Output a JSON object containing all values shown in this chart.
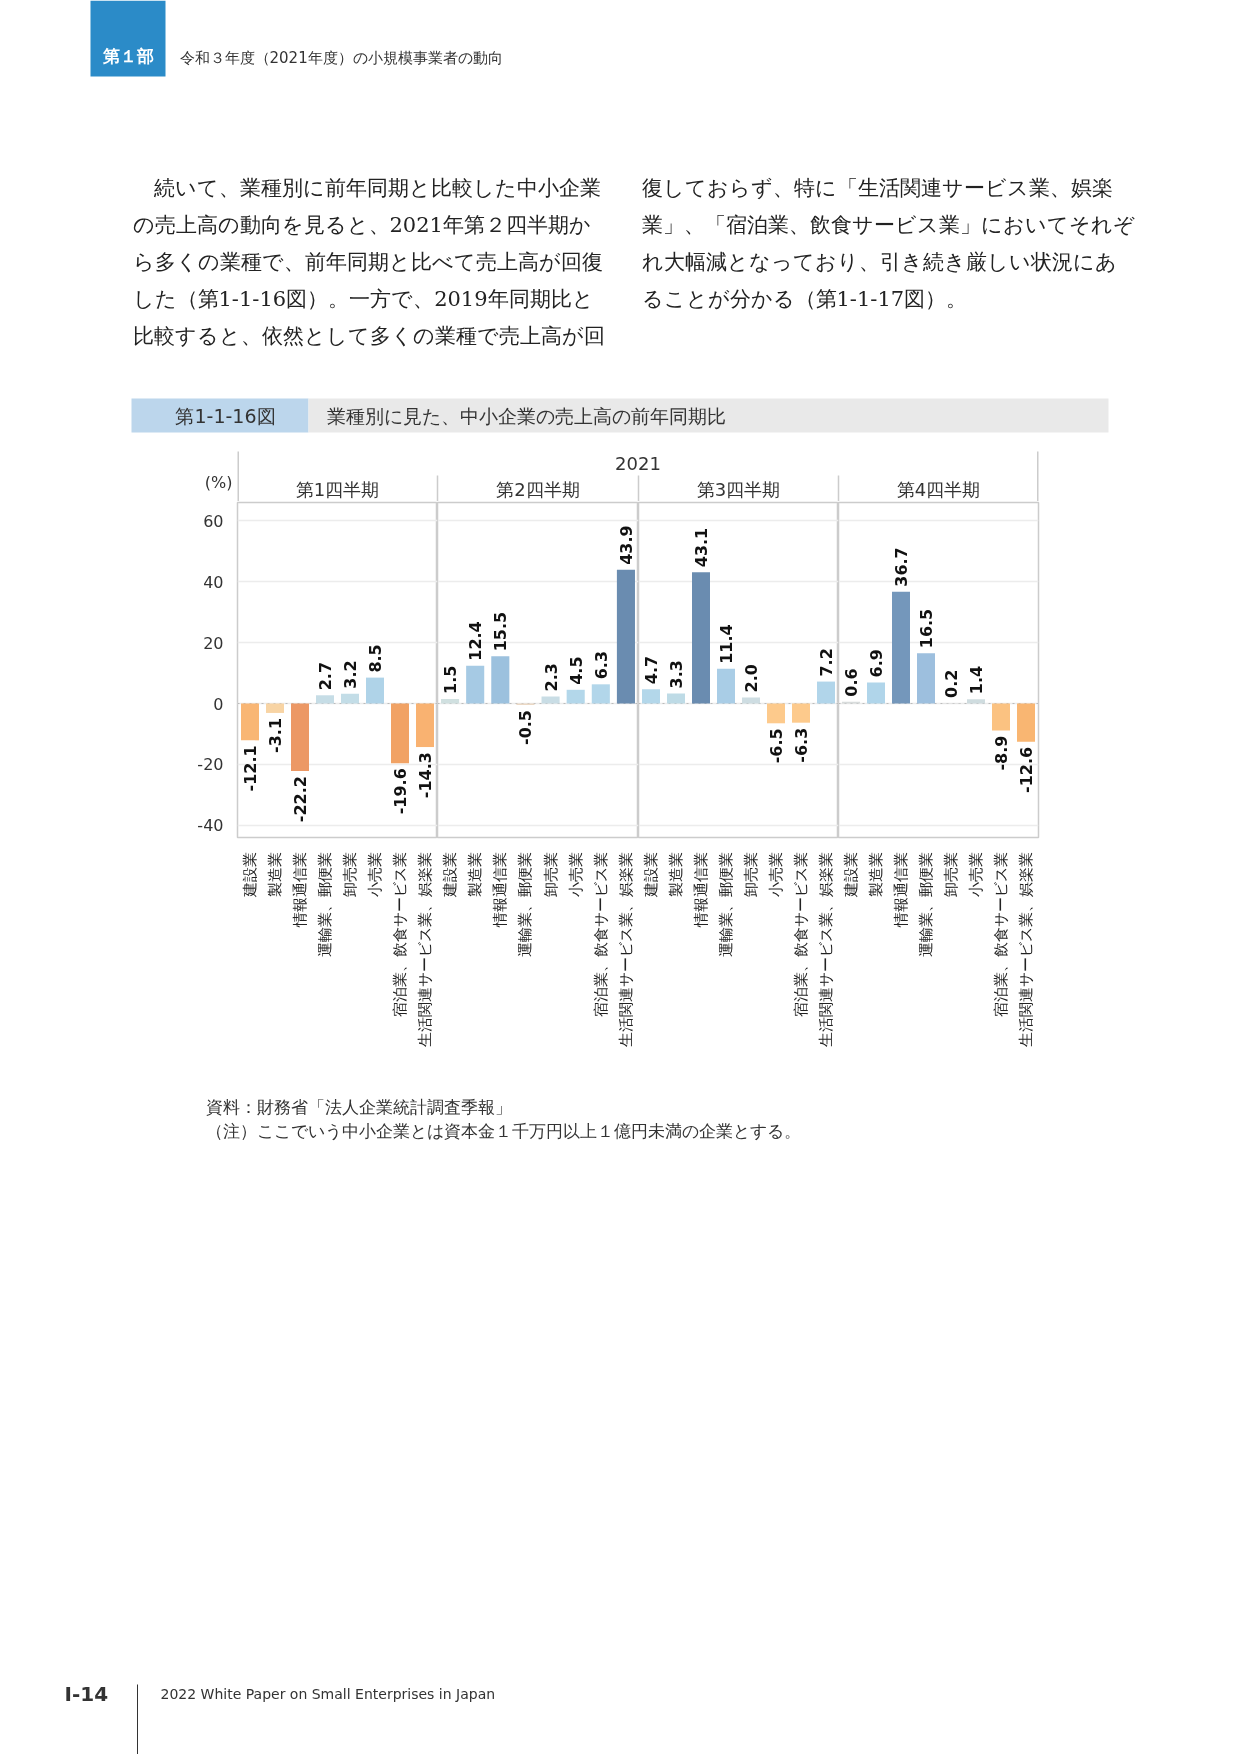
{
  "chart_data": [
    {
      "type": "other",
      "annotations": [
        "第１部",
        "令和３年度（2021年度）の小規模事業者の動向",
        "　続いて、業種別に前年同期と比較した中小企業の売上高の動向を見ると、2021年第２四半期から多くの業種で、前年同期と比べて売上高が回復した（第1-1-16図）。一方で、2019年同期比と比較すると、依然として多くの業種で売上高が回復しておらず、特に「生活関連サービス業、娯楽業」、「宿泊業、飲食サービス業」においてそれぞれ大幅減となっており、引き続き厳しい状況にあることが分かる（第1-1-17図）。"
      ]
    },
    {
      "type": "other",
      "title": "業種別に見た、中小企業の売上高の前年同期比",
      "subtitle": "2021",
      "annotations": [
        "第1-1-16図"
      ]
    },
    {
      "type": "bar",
      "title": "第1四半期",
      "ylabel": "(%)",
      "categories": [
        "建設業",
        "製造業",
        "情報通信業",
        "運輸業、郵便業",
        "卸売業",
        "小売業",
        "宿泊業、飲食サービス業",
        "生活関連サービス業、娯楽業"
      ],
      "values": [
        -12.1,
        -3.1,
        -22.2,
        2.7,
        3.2,
        8.5,
        -19.6,
        -14.3
      ],
      "value_labels": [
        "-12.1",
        "-3.1",
        "-22.2",
        "2.7",
        "3.2",
        "8.5",
        "-19.6",
        "-14.3"
      ],
      "colors": [
        "#f9b674",
        "#f8d4a4",
        "#ec9865",
        "#c6dde6",
        "#c3dde7",
        "#afd3e8",
        "#f1a264",
        "#f9b271"
      ],
      "ylim": [
        -44,
        66
      ],
      "yticks": [
        -40,
        -20,
        0,
        20,
        40,
        60
      ],
      "grid": "y",
      "ref_lines": [
        {
          "axis": "y",
          "value": 0,
          "color": "#bbbbbb",
          "line_style": "dotted"
        }
      ]
    },
    {
      "type": "bar",
      "title": "第2四半期",
      "categories": [
        "建設業",
        "製造業",
        "情報通信業",
        "運輸業、郵便業",
        "卸売業",
        "小売業",
        "宿泊業、飲食サービス業",
        "生活関連サービス業、娯楽業"
      ],
      "values": [
        1.5,
        12.4,
        15.5,
        -0.5,
        2.3,
        4.5,
        6.3,
        43.9
      ],
      "value_labels": [
        "1.5",
        "12.4",
        "15.5",
        "-0.5",
        "2.3",
        "4.5",
        "6.3",
        "43.9"
      ],
      "colors": [
        "#d0e0e0",
        "#a6cae4",
        "#9cc1de",
        "#ebd8c4",
        "#c9dde5",
        "#b3d7ea",
        "#b2d6ea",
        "#6a8cb0"
      ],
      "ylim": [
        -44,
        66
      ],
      "yticks": [
        -40,
        -20,
        0,
        20,
        40,
        60
      ],
      "tick_labels": "x",
      "grid": "y",
      "ref_lines": [
        {
          "axis": "y",
          "value": 0,
          "color": "#bbbbbb",
          "line_style": "dotted"
        }
      ]
    },
    {
      "type": "bar",
      "title": "第3四半期",
      "categories": [
        "建設業",
        "製造業",
        "情報通信業",
        "運輸業、郵便業",
        "卸売業",
        "小売業",
        "宿泊業、飲食サービス業",
        "生活関連サービス業、娯楽業"
      ],
      "values": [
        4.7,
        3.3,
        43.1,
        11.4,
        2.0,
        -6.5,
        -6.3,
        7.2
      ],
      "value_labels": [
        "4.7",
        "3.3",
        "43.1",
        "11.4",
        "2.0",
        "-6.5",
        "-6.3",
        "7.2"
      ],
      "colors": [
        "#b3d7ea",
        "#bedbe6",
        "#6a8cb0",
        "#a9cde6",
        "#cedde2",
        "#fdca8c",
        "#fdca8c",
        "#b1d5ea"
      ],
      "ylim": [
        -44,
        66
      ],
      "yticks": [
        -40,
        -20,
        0,
        20,
        40,
        60
      ],
      "tick_labels": "x",
      "grid": "y",
      "ref_lines": [
        {
          "axis": "y",
          "value": 0,
          "color": "#bbbbbb",
          "line_style": "dotted"
        }
      ]
    },
    {
      "type": "bar",
      "title": "第4四半期",
      "categories": [
        "建設業",
        "製造業",
        "情報通信業",
        "運輸業、郵便業",
        "卸売業",
        "小売業",
        "宿泊業、飲食サービス業",
        "生活関連サービス業、娯楽業"
      ],
      "values": [
        0.6,
        6.9,
        36.7,
        16.5,
        0.2,
        1.4,
        -8.9,
        -12.6
      ],
      "value_labels": [
        "0.6",
        "6.9",
        "36.7",
        "16.5",
        "0.2",
        "1.4",
        "-8.9",
        "-12.6"
      ],
      "colors": [
        "#d8dcdc",
        "#b0d5ea",
        "#7497bb",
        "#9dbfde",
        "#dcdcdc",
        "#cfdcdf",
        "#fbc281",
        "#f9b672"
      ],
      "ylim": [
        -44,
        66
      ],
      "yticks": [
        -40,
        -20,
        0,
        20,
        40,
        60
      ],
      "tick_labels": "x",
      "grid": "y",
      "ref_lines": [
        {
          "axis": "y",
          "value": 0,
          "color": "#bbbbbb",
          "line_style": "dotted"
        }
      ]
    },
    {
      "type": "other",
      "annotations": [
        "資料：財務省「法人企業統計調査季報」",
        "（注）ここでいう中小企業とは資本金１千万円以上１億円未満の企業とする。"
      ]
    },
    {
      "type": "other",
      "annotations": [
        "I-14",
        "2022 White Paper on Small Enterprises in Japan"
      ]
    }
  ]
}
